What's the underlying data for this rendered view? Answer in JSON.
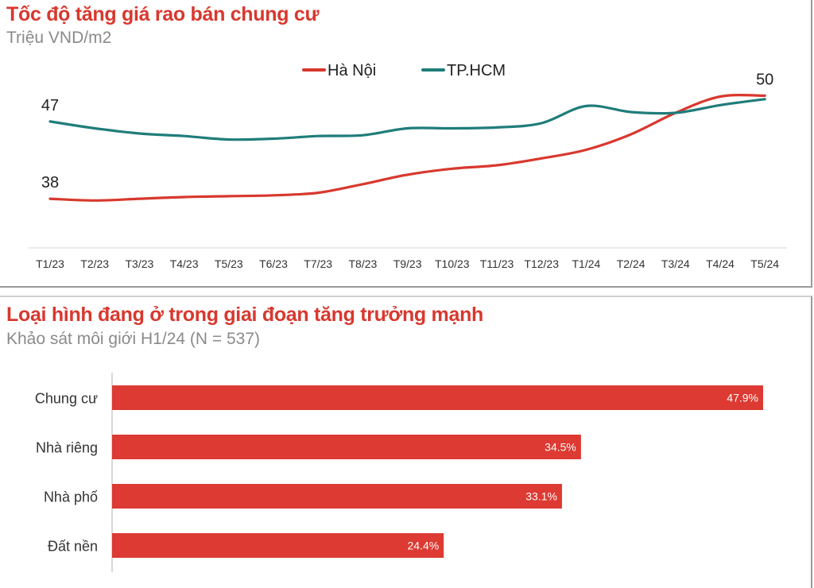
{
  "chart_data": [
    {
      "type": "line",
      "title": "Tốc độ tăng giá rao bán chung cư",
      "subtitle": "Triệu VND/m2",
      "categories": [
        "T1/23",
        "T2/23",
        "T3/23",
        "T4/23",
        "T5/23",
        "T6/23",
        "T7/23",
        "T8/23",
        "T9/23",
        "T10/23",
        "T11/23",
        "T12/23",
        "T1/24",
        "T2/24",
        "T3/24",
        "T4/24",
        "T5/24"
      ],
      "series": [
        {
          "name": "Hà Nội",
          "color": "#d8382e",
          "values": [
            38,
            37.8,
            38,
            38.2,
            38.3,
            38.4,
            38.7,
            39.7,
            40.8,
            41.5,
            41.9,
            42.7,
            43.7,
            45.5,
            48,
            49.9,
            50
          ]
        },
        {
          "name": "TP.HCM",
          "color": "#1f7d7a",
          "values": [
            47,
            46.2,
            45.6,
            45.3,
            44.9,
            45,
            45.3,
            45.4,
            46.2,
            46.2,
            46.3,
            46.8,
            48.8,
            48.1,
            48,
            48.9,
            49.6
          ]
        }
      ],
      "data_labels": [
        {
          "series": "Hà Nội",
          "category": "T1/23",
          "text": "38"
        },
        {
          "series": "TP.HCM",
          "category": "T1/23",
          "text": "47"
        },
        {
          "series": "Hà Nội",
          "category": "T5/24",
          "text": "50"
        }
      ],
      "ylim": [
        32,
        53
      ],
      "grid": false,
      "legend": "top-center"
    },
    {
      "type": "bar",
      "orientation": "horizontal",
      "title": "Loại hình đang ở trong giai đoạn tăng trưởng mạnh",
      "subtitle": "Khảo sát môi giới H1/24 (N = 537)",
      "categories": [
        "Chung cư",
        "Nhà riêng",
        "Nhà phố",
        "Đất nền"
      ],
      "values": [
        47.9,
        34.5,
        33.1,
        24.4
      ],
      "value_labels": [
        "47.9%",
        "34.5%",
        "33.1%",
        "24.4%"
      ],
      "color": "#dc3a32",
      "xlim": [
        0,
        47.9
      ],
      "grid": false
    }
  ]
}
